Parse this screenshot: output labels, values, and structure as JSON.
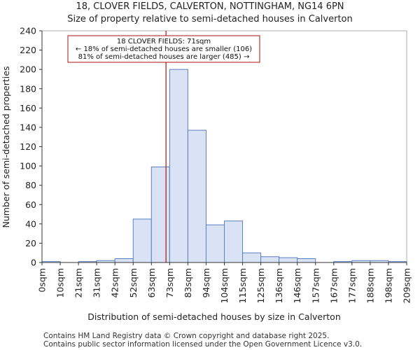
{
  "chart_data": {
    "type": "bar",
    "title": "18, CLOVER FIELDS, CALVERTON, NOTTINGHAM, NG14 6PN",
    "subtitle": "Size of property relative to semi-detached houses in Calverton",
    "xlabel": "Distribution of semi-detached houses by size in Calverton",
    "ylabel": "Number of semi-detached properties",
    "ylim": [
      0,
      240
    ],
    "yticks": [
      0,
      20,
      40,
      60,
      80,
      100,
      120,
      140,
      160,
      180,
      200,
      220,
      240
    ],
    "bin_edges": [
      "0sqm",
      "10sqm",
      "21sqm",
      "31sqm",
      "42sqm",
      "52sqm",
      "63sqm",
      "73sqm",
      "83sqm",
      "94sqm",
      "104sqm",
      "115sqm",
      "125sqm",
      "136sqm",
      "146sqm",
      "157sqm",
      "167sqm",
      "177sqm",
      "188sqm",
      "198sqm",
      "209sqm"
    ],
    "values": [
      1,
      0,
      1,
      2,
      4,
      45,
      99,
      200,
      137,
      39,
      43,
      10,
      6,
      5,
      4,
      0,
      1,
      2,
      2,
      1
    ],
    "marker": {
      "bin_position": 6.8,
      "label_line1": "18 CLOVER FIELDS: 71sqm",
      "label_line2": "← 18% of semi-detached houses are smaller (106)",
      "label_line3": "81% of semi-detached houses are larger (485) →"
    },
    "colors": {
      "bar_fill": "#dae3f5",
      "bar_stroke": "#5b7fc0",
      "marker": "#aa1111"
    }
  },
  "footer": {
    "line1": "Contains HM Land Registry data © Crown copyright and database right 2025.",
    "line2": "Contains public sector information licensed under the Open Government Licence v3.0."
  }
}
